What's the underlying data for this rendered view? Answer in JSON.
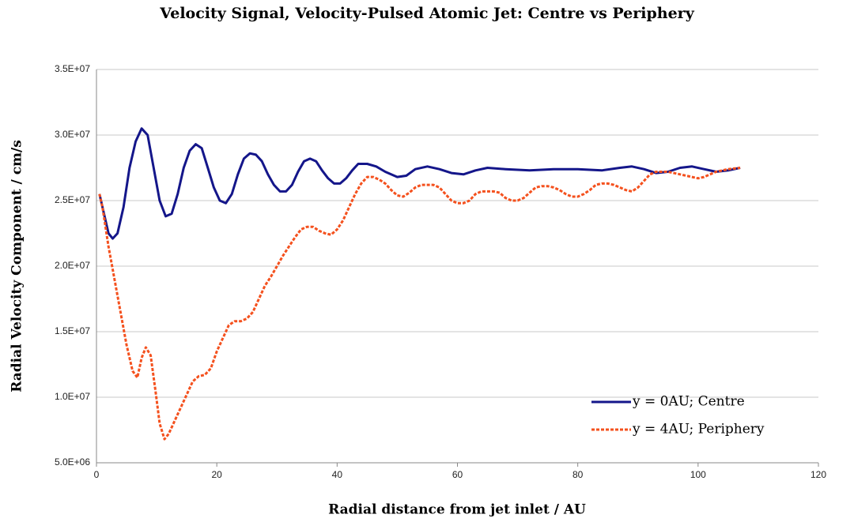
{
  "chart_data": {
    "type": "line",
    "title": "Velocity Signal, Velocity-Pulsed Atomic Jet: Centre vs Periphery",
    "xlabel": "Radial distance from jet inlet / AU",
    "ylabel": "Radial Velocity Component / cm/s",
    "xlim": [
      0,
      120
    ],
    "xticks": [
      0,
      20,
      40,
      60,
      80,
      100,
      120
    ],
    "ylim": [
      5000000.0,
      35000000.0
    ],
    "yticks": [
      {
        "value": 5000000.0,
        "label": "5.0E+06"
      },
      {
        "value": 10000000.0,
        "label": "1.0E+07"
      },
      {
        "value": 15000000.0,
        "label": "1.5E+07"
      },
      {
        "value": 20000000.0,
        "label": "2.0E+07"
      },
      {
        "value": 25000000.0,
        "label": "2.5E+07"
      },
      {
        "value": 30000000.0,
        "label": "3.0E+07"
      },
      {
        "value": 35000000.0,
        "label": "3.5E+07"
      }
    ],
    "grid": true,
    "legend": "lower right",
    "series": [
      {
        "name": "y = 0AU; Centre",
        "color": "#14168a",
        "dashed": false,
        "x": [
          0.5,
          1,
          2,
          2.7,
          3.5,
          4.5,
          5.5,
          6.5,
          7.5,
          8.5,
          9.5,
          10.5,
          11.5,
          12.5,
          13.5,
          14.5,
          15.5,
          16.5,
          17.5,
          18.5,
          19.5,
          20.5,
          21.5,
          22.5,
          23.5,
          24.5,
          25.5,
          26.5,
          27.5,
          28.5,
          29.5,
          30.5,
          31.5,
          32.5,
          33.5,
          34.5,
          35.5,
          36.5,
          37.5,
          38.5,
          39.5,
          40.5,
          41.5,
          42.5,
          43.5,
          45,
          46.5,
          48,
          50,
          51.5,
          53,
          55,
          57,
          59,
          61,
          63,
          65,
          68,
          72,
          76,
          80,
          84,
          87,
          89,
          91,
          93,
          95,
          97,
          99,
          101,
          103,
          105,
          107
        ],
        "values": [
          25500000.0,
          24500000.0,
          22500000.0,
          22100000.0,
          22500000.0,
          24500000.0,
          27500000.0,
          29500000.0,
          30500000.0,
          30000000.0,
          27500000.0,
          25000000.0,
          23800000.0,
          24000000.0,
          25500000.0,
          27500000.0,
          28800000.0,
          29300000.0,
          29000000.0,
          27500000.0,
          26000000.0,
          25000000.0,
          24800000.0,
          25500000.0,
          27000000.0,
          28200000.0,
          28600000.0,
          28500000.0,
          28000000.0,
          27000000.0,
          26200000.0,
          25700000.0,
          25700000.0,
          26200000.0,
          27200000.0,
          28000000.0,
          28200000.0,
          28000000.0,
          27300000.0,
          26700000.0,
          26300000.0,
          26300000.0,
          26700000.0,
          27300000.0,
          27800000.0,
          27800000.0,
          27600000.0,
          27200000.0,
          26800000.0,
          26900000.0,
          27400000.0,
          27600000.0,
          27400000.0,
          27100000.0,
          27000000.0,
          27300000.0,
          27500000.0,
          27400000.0,
          27300000.0,
          27400000.0,
          27400000.0,
          27300000.0,
          27500000.0,
          27600000.0,
          27400000.0,
          27100000.0,
          27200000.0,
          27500000.0,
          27600000.0,
          27400000.0,
          27200000.0,
          27300000.0,
          27500000.0
        ]
      },
      {
        "name": "y = 4AU; Periphery",
        "color": "#f4511e",
        "dashed": true,
        "x": [
          0.5,
          1,
          2,
          3,
          4,
          5,
          6,
          6.8,
          7.5,
          8.2,
          9,
          9.8,
          10.5,
          11.3,
          12,
          13,
          14,
          15,
          16,
          17,
          18,
          19,
          20,
          21,
          22,
          23,
          24,
          25,
          26,
          27,
          28,
          29,
          30,
          31,
          32,
          33,
          34,
          35,
          36,
          37,
          38,
          39,
          40,
          41,
          42,
          43,
          44,
          45,
          46,
          47,
          48,
          49,
          50,
          51,
          52,
          53,
          54,
          55,
          56,
          57,
          58,
          59,
          60,
          61,
          62,
          63,
          64,
          65,
          66,
          67,
          68,
          69,
          70,
          71,
          72,
          73,
          74,
          75,
          76,
          77,
          78,
          79,
          80,
          81,
          82,
          83,
          84,
          85,
          86,
          87,
          88,
          89,
          90,
          91,
          92,
          93,
          95,
          97,
          99,
          100,
          101,
          103,
          105,
          107
        ],
        "values": [
          25500000.0,
          24500000.0,
          21500000.0,
          19000000.0,
          16500000.0,
          14000000.0,
          12000000.0,
          11500000.0,
          13000000.0,
          13800000.0,
          13200000.0,
          10500000.0,
          8000000.0,
          6800000.0,
          7200000.0,
          8200000.0,
          9200000.0,
          10200000.0,
          11200000.0,
          11600000.0,
          11700000.0,
          12200000.0,
          13500000.0,
          14500000.0,
          15500000.0,
          15800000.0,
          15800000.0,
          16000000.0,
          16500000.0,
          17500000.0,
          18500000.0,
          19200000.0,
          20000000.0,
          20800000.0,
          21500000.0,
          22200000.0,
          22800000.0,
          23000000.0,
          23000000.0,
          22700000.0,
          22500000.0,
          22400000.0,
          22800000.0,
          23500000.0,
          24500000.0,
          25500000.0,
          26300000.0,
          26800000.0,
          26800000.0,
          26600000.0,
          26300000.0,
          25800000.0,
          25400000.0,
          25300000.0,
          25600000.0,
          26000000.0,
          26200000.0,
          26200000.0,
          26200000.0,
          26000000.0,
          25500000.0,
          25000000.0,
          24800000.0,
          24800000.0,
          25000000.0,
          25500000.0,
          25700000.0,
          25700000.0,
          25700000.0,
          25600000.0,
          25200000.0,
          25000000.0,
          25000000.0,
          25200000.0,
          25600000.0,
          26000000.0,
          26100000.0,
          26100000.0,
          26000000.0,
          25800000.0,
          25500000.0,
          25300000.0,
          25300000.0,
          25500000.0,
          25800000.0,
          26200000.0,
          26300000.0,
          26300000.0,
          26200000.0,
          26000000.0,
          25800000.0,
          25700000.0,
          26000000.0,
          26500000.0,
          27000000.0,
          27200000.0,
          27200000.0,
          27000000.0,
          26800000.0,
          26700000.0,
          26800000.0,
          27200000.0,
          27400000.0,
          27500000.0
        ]
      }
    ]
  }
}
